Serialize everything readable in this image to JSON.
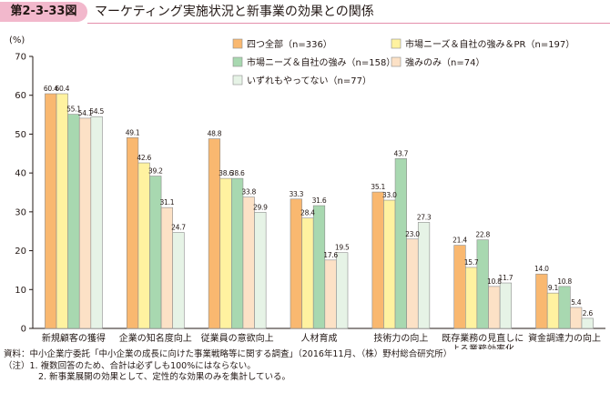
{
  "header": {
    "figure_number": "第2-3-33図",
    "title": "マーケティング実施状況と新事業の効果との関係"
  },
  "chart_data": {
    "type": "bar",
    "title": "",
    "ylabel": "(%)",
    "xlabel": "",
    "ylim": [
      0,
      70
    ],
    "yticks": [
      0,
      10,
      20,
      30,
      40,
      50,
      60,
      70
    ],
    "grid": false,
    "legend_position": "top-right",
    "categories": [
      [
        "新規顧客の獲得"
      ],
      [
        "企業の知名度向上"
      ],
      [
        "従業員の意欲向上"
      ],
      [
        "人材育成"
      ],
      [
        "技術力の向上"
      ],
      [
        "既存業務の見直しに",
        "よる業務効率化"
      ],
      [
        "資金調達力の向上"
      ]
    ],
    "series": [
      {
        "name": "四つ全部（n=336）",
        "color": "#f9b870",
        "values": [
          60.4,
          49.1,
          48.8,
          33.3,
          35.1,
          21.4,
          14.0
        ]
      },
      {
        "name": "市場ニーズ＆自社の強み＆PR（n=197）",
        "color": "#fff2a0",
        "values": [
          60.4,
          42.6,
          38.6,
          28.4,
          33.0,
          15.7,
          9.1
        ]
      },
      {
        "name": "市場ニーズ＆自社の強み（n=158）",
        "color": "#a8d8b0",
        "values": [
          55.1,
          39.2,
          38.6,
          31.6,
          43.7,
          22.8,
          10.8
        ]
      },
      {
        "name": "強みのみ（n=74）",
        "color": "#fce1c6",
        "values": [
          54.1,
          31.1,
          33.8,
          17.6,
          23.0,
          10.8,
          5.4
        ]
      },
      {
        "name": "いずれもやってない（n=77）",
        "color": "#e6f3e6",
        "values": [
          54.5,
          24.7,
          29.9,
          19.5,
          27.3,
          11.7,
          2.6
        ]
      }
    ]
  },
  "notes": {
    "source": "資料：中小企業庁委託「中小企業の成長に向けた事業戦略等に関する調査」（2016年11月、（株）野村総合研究所）",
    "note1": "（注）1. 複数回答のため、合計は必ずしも100%にはならない。",
    "note2": "2. 新事業展開の効果として、定性的な効果のみを集計している。"
  }
}
